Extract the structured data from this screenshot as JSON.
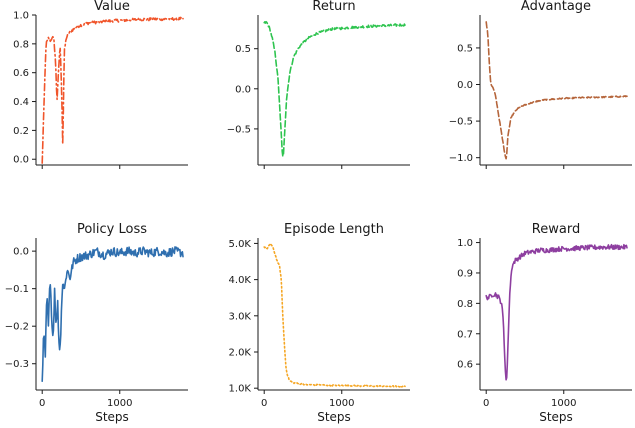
{
  "chart_data": [
    {
      "type": "line",
      "title": "Value",
      "color": "#f0552b",
      "dash": "dashdot",
      "xlabel": "",
      "xlim": [
        -80,
        1880
      ],
      "ylim": [
        -0.04,
        1.0
      ],
      "xticks": [
        {
          "value": 0,
          "label": ""
        },
        {
          "value": 1000,
          "label": ""
        }
      ],
      "yticks": [
        {
          "value": 0.0,
          "label": "0.0"
        },
        {
          "value": 0.2,
          "label": "0.2"
        },
        {
          "value": 0.4,
          "label": "0.4"
        },
        {
          "value": 0.6,
          "label": "0.6"
        },
        {
          "value": 0.8,
          "label": "0.8"
        },
        {
          "value": 1.0,
          "label": "1.0"
        }
      ],
      "points": [
        [
          0,
          -0.03
        ],
        [
          30,
          0.5
        ],
        [
          50,
          0.8
        ],
        [
          80,
          0.84
        ],
        [
          110,
          0.82
        ],
        [
          130,
          0.85
        ],
        [
          150,
          0.83
        ],
        [
          170,
          0.7
        ],
        [
          190,
          0.4
        ],
        [
          210,
          0.6
        ],
        [
          230,
          0.8
        ],
        [
          250,
          0.5
        ],
        [
          265,
          0.08
        ],
        [
          285,
          0.75
        ],
        [
          310,
          0.84
        ],
        [
          350,
          0.88
        ],
        [
          400,
          0.9
        ],
        [
          450,
          0.92
        ],
        [
          500,
          0.93
        ],
        [
          600,
          0.945
        ],
        [
          700,
          0.95
        ],
        [
          800,
          0.955
        ],
        [
          900,
          0.96
        ],
        [
          1000,
          0.962
        ],
        [
          1100,
          0.965
        ],
        [
          1200,
          0.967
        ],
        [
          1300,
          0.97
        ],
        [
          1400,
          0.97
        ],
        [
          1500,
          0.972
        ],
        [
          1600,
          0.972
        ],
        [
          1700,
          0.973
        ],
        [
          1820,
          0.975
        ]
      ],
      "noise": 0.01
    },
    {
      "type": "line",
      "title": "Return",
      "color": "#2ec44f",
      "dash": "dashed",
      "xlabel": "",
      "xlim": [
        -80,
        1880
      ],
      "ylim": [
        -0.95,
        0.92
      ],
      "xticks": [
        {
          "value": 0,
          "label": ""
        },
        {
          "value": 1000,
          "label": ""
        }
      ],
      "yticks": [
        {
          "value": 0.5,
          "label": "0.5"
        },
        {
          "value": 0.0,
          "label": "0.0"
        },
        {
          "value": -0.5,
          "label": "−0.5"
        }
      ],
      "points": [
        [
          0,
          0.82
        ],
        [
          30,
          0.83
        ],
        [
          60,
          0.78
        ],
        [
          100,
          0.65
        ],
        [
          140,
          0.45
        ],
        [
          180,
          0.1
        ],
        [
          210,
          -0.4
        ],
        [
          230,
          -0.75
        ],
        [
          245,
          -0.9
        ],
        [
          260,
          -0.6
        ],
        [
          290,
          -0.1
        ],
        [
          330,
          0.2
        ],
        [
          380,
          0.4
        ],
        [
          450,
          0.52
        ],
        [
          550,
          0.62
        ],
        [
          650,
          0.68
        ],
        [
          750,
          0.71
        ],
        [
          850,
          0.74
        ],
        [
          950,
          0.75
        ],
        [
          1050,
          0.76
        ],
        [
          1200,
          0.77
        ],
        [
          1350,
          0.78
        ],
        [
          1500,
          0.785
        ],
        [
          1650,
          0.79
        ],
        [
          1820,
          0.8
        ]
      ],
      "noise": 0.015
    },
    {
      "type": "line",
      "title": "Advantage",
      "color": "#b5653b",
      "dash": "dashed",
      "xlabel": "",
      "xlim": [
        -80,
        1880
      ],
      "ylim": [
        -1.1,
        0.95
      ],
      "xticks": [
        {
          "value": 0,
          "label": ""
        },
        {
          "value": 1000,
          "label": ""
        }
      ],
      "yticks": [
        {
          "value": 0.5,
          "label": "0.5"
        },
        {
          "value": 0.0,
          "label": "0.0"
        },
        {
          "value": -0.5,
          "label": "−0.5"
        },
        {
          "value": -1.0,
          "label": "−1.0"
        }
      ],
      "points": [
        [
          0,
          0.85
        ],
        [
          20,
          0.7
        ],
        [
          40,
          0.3
        ],
        [
          60,
          0.0
        ],
        [
          90,
          -0.05
        ],
        [
          120,
          -0.15
        ],
        [
          150,
          -0.35
        ],
        [
          180,
          -0.55
        ],
        [
          210,
          -0.75
        ],
        [
          240,
          -0.95
        ],
        [
          260,
          -1.02
        ],
        [
          280,
          -0.7
        ],
        [
          320,
          -0.45
        ],
        [
          380,
          -0.35
        ],
        [
          450,
          -0.3
        ],
        [
          550,
          -0.26
        ],
        [
          650,
          -0.23
        ],
        [
          750,
          -0.21
        ],
        [
          850,
          -0.2
        ],
        [
          1000,
          -0.19
        ],
        [
          1200,
          -0.18
        ],
        [
          1400,
          -0.175
        ],
        [
          1600,
          -0.17
        ],
        [
          1820,
          -0.16
        ]
      ],
      "noise": 0.008
    },
    {
      "type": "line",
      "title": "Policy Loss",
      "color": "#2f6faf",
      "dash": "solid",
      "xlabel": "Steps",
      "xlim": [
        -80,
        1880
      ],
      "ylim": [
        -0.37,
        0.035
      ],
      "xticks": [
        {
          "value": 0,
          "label": "0"
        },
        {
          "value": 1000,
          "label": "1000"
        }
      ],
      "yticks": [
        {
          "value": 0.0,
          "label": "0.0"
        },
        {
          "value": -0.1,
          "label": "−0.1"
        },
        {
          "value": -0.2,
          "label": "−0.2"
        },
        {
          "value": -0.3,
          "label": "−0.3"
        }
      ],
      "points": [
        [
          0,
          -0.34
        ],
        [
          20,
          -0.22
        ],
        [
          40,
          -0.28
        ],
        [
          60,
          -0.12
        ],
        [
          80,
          -0.2
        ],
        [
          100,
          -0.08
        ],
        [
          120,
          -0.16
        ],
        [
          140,
          -0.24
        ],
        [
          160,
          -0.1
        ],
        [
          180,
          -0.2
        ],
        [
          200,
          -0.14
        ],
        [
          220,
          -0.27
        ],
        [
          240,
          -0.22
        ],
        [
          260,
          -0.08
        ],
        [
          290,
          -0.1
        ],
        [
          320,
          -0.05
        ],
        [
          360,
          -0.07
        ],
        [
          400,
          -0.03
        ],
        [
          450,
          -0.02
        ],
        [
          500,
          -0.015
        ],
        [
          600,
          -0.01
        ],
        [
          700,
          0.0
        ],
        [
          800,
          -0.01
        ],
        [
          900,
          0.0
        ],
        [
          1000,
          -0.005
        ],
        [
          1100,
          0.0
        ],
        [
          1200,
          -0.005
        ],
        [
          1300,
          0.0
        ],
        [
          1400,
          -0.005
        ],
        [
          1500,
          0.0
        ],
        [
          1600,
          -0.005
        ],
        [
          1700,
          0.0
        ],
        [
          1820,
          -0.005
        ]
      ],
      "noise": 0.012
    },
    {
      "type": "line",
      "title": "Episode Length",
      "color": "#f5a623",
      "dash": "dotted",
      "xlabel": "Steps",
      "xlim": [
        -80,
        1880
      ],
      "ylim": [
        950,
        5150
      ],
      "xticks": [
        {
          "value": 0,
          "label": "0"
        },
        {
          "value": 1000,
          "label": "1000"
        }
      ],
      "yticks": [
        {
          "value": 1000,
          "label": "1.0K"
        },
        {
          "value": 2000,
          "label": "2.0K"
        },
        {
          "value": 3000,
          "label": "3.0K"
        },
        {
          "value": 4000,
          "label": "4.0K"
        },
        {
          "value": 5000,
          "label": "5.0K"
        }
      ],
      "points": [
        [
          0,
          4900
        ],
        [
          40,
          4850
        ],
        [
          80,
          5000
        ],
        [
          110,
          4900
        ],
        [
          140,
          4700
        ],
        [
          170,
          4500
        ],
        [
          200,
          4350
        ],
        [
          220,
          4000
        ],
        [
          240,
          3000
        ],
        [
          260,
          2200
        ],
        [
          280,
          1600
        ],
        [
          300,
          1350
        ],
        [
          330,
          1200
        ],
        [
          380,
          1150
        ],
        [
          450,
          1120
        ],
        [
          550,
          1100
        ],
        [
          700,
          1090
        ],
        [
          900,
          1080
        ],
        [
          1100,
          1070
        ],
        [
          1300,
          1060
        ],
        [
          1500,
          1055
        ],
        [
          1700,
          1050
        ],
        [
          1820,
          1050
        ]
      ],
      "noise": 18
    },
    {
      "type": "line",
      "title": "Reward",
      "color": "#8e3fa0",
      "dash": "solid",
      "xlabel": "Steps",
      "xlim": [
        -80,
        1880
      ],
      "ylim": [
        0.515,
        1.015
      ],
      "xticks": [
        {
          "value": 0,
          "label": "0"
        },
        {
          "value": 1000,
          "label": "1000"
        }
      ],
      "yticks": [
        {
          "value": 0.6,
          "label": "0.6"
        },
        {
          "value": 0.7,
          "label": "0.7"
        },
        {
          "value": 0.8,
          "label": "0.8"
        },
        {
          "value": 0.9,
          "label": "0.9"
        },
        {
          "value": 1.0,
          "label": "1.0"
        }
      ],
      "points": [
        [
          0,
          0.82
        ],
        [
          40,
          0.82
        ],
        [
          80,
          0.83
        ],
        [
          120,
          0.83
        ],
        [
          160,
          0.82
        ],
        [
          200,
          0.8
        ],
        [
          220,
          0.74
        ],
        [
          240,
          0.62
        ],
        [
          260,
          0.53
        ],
        [
          280,
          0.65
        ],
        [
          300,
          0.82
        ],
        [
          330,
          0.92
        ],
        [
          370,
          0.94
        ],
        [
          420,
          0.95
        ],
        [
          500,
          0.965
        ],
        [
          600,
          0.97
        ],
        [
          700,
          0.975
        ],
        [
          800,
          0.975
        ],
        [
          900,
          0.978
        ],
        [
          1000,
          0.98
        ],
        [
          1100,
          0.98
        ],
        [
          1200,
          0.982
        ],
        [
          1300,
          0.983
        ],
        [
          1400,
          0.984
        ],
        [
          1500,
          0.985
        ],
        [
          1600,
          0.985
        ],
        [
          1700,
          0.985
        ],
        [
          1820,
          0.985
        ]
      ],
      "noise": 0.008
    }
  ]
}
